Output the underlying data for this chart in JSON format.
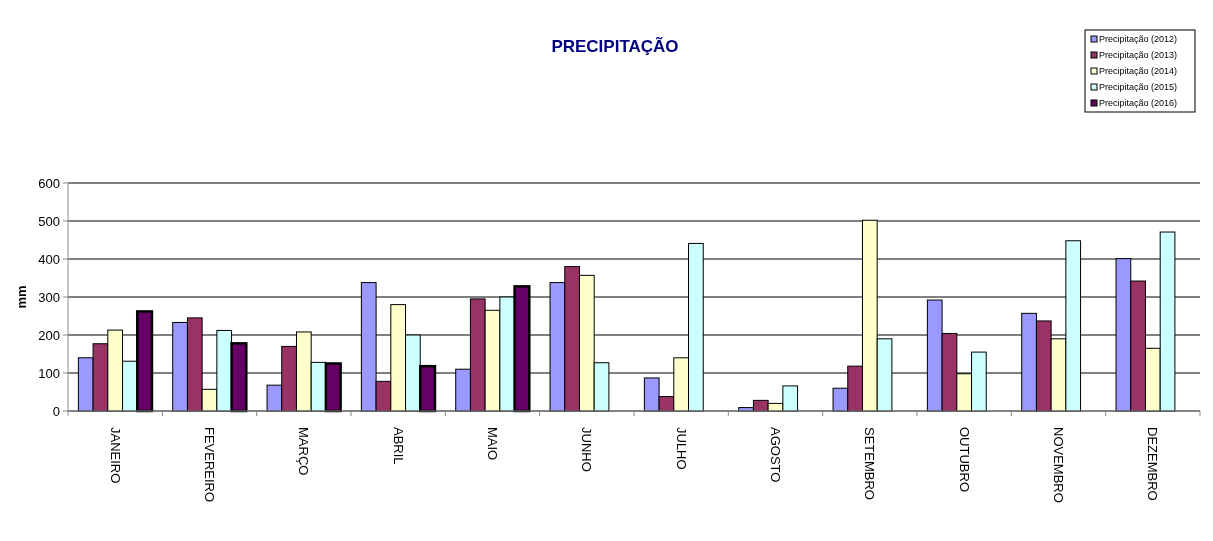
{
  "chart_data": {
    "type": "bar",
    "title": "PRECIPITAÇÃO",
    "ylabel": "mm",
    "categories": [
      "JANEIRO",
      "FEVEREIRO",
      "MARÇO",
      "ABRIL",
      "MAIO",
      "JUNHO",
      "JULHO",
      "AGOSTO",
      "SETEMBRO",
      "OUTUBRO",
      "NOVEMBRO",
      "DEZEMBRO"
    ],
    "series": [
      {
        "name": "Precipitação (2012)",
        "color": "#9999ff",
        "values": [
          140,
          233,
          68,
          338,
          110,
          338,
          87,
          9,
          60,
          292,
          257,
          401
        ]
      },
      {
        "name": "Precipitação (2013)",
        "color": "#993366",
        "values": [
          177,
          245,
          170,
          78,
          295,
          380,
          38,
          28,
          118,
          204,
          237,
          342
        ]
      },
      {
        "name": "Precipitação (2014)",
        "color": "#ffffcc",
        "values": [
          213,
          57,
          208,
          280,
          265,
          357,
          140,
          20,
          502,
          98,
          190,
          165
        ]
      },
      {
        "name": "Precipitação (2015)",
        "color": "#ccffff",
        "values": [
          131,
          212,
          128,
          200,
          300,
          127,
          441,
          66,
          190,
          155,
          448,
          471
        ]
      },
      {
        "name": "Precipitação (2016)",
        "color": "#660066",
        "values": [
          262,
          178,
          125,
          118,
          328,
          null,
          null,
          null,
          null,
          null,
          null,
          null
        ]
      }
    ],
    "ylim": [
      0,
      600
    ],
    "yticks": [
      0,
      100,
      200,
      300,
      400,
      500,
      600
    ],
    "grid": "y",
    "legend": "top right"
  }
}
